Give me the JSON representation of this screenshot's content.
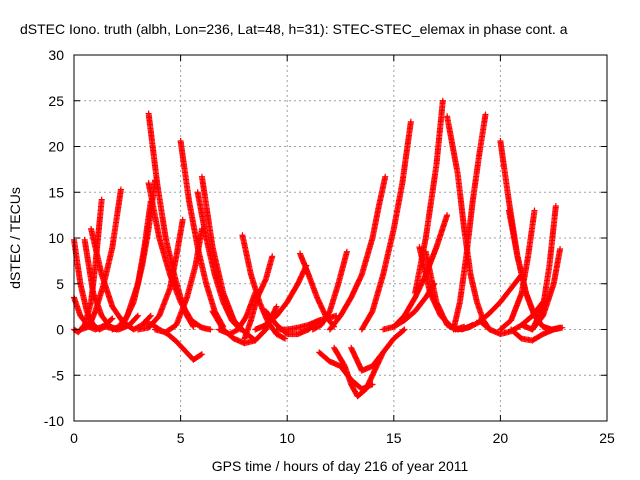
{
  "chart_data": {
    "type": "scatter",
    "title": "dSTEC Iono. truth (albh, Lon=236, Lat=48, h=31): STEC-STEC_elemax in phase cont. a",
    "xlabel": "GPS time / hours of day 216 of year 2011",
    "ylabel": "dSTEC  / TECUs",
    "xlim": [
      0,
      25
    ],
    "ylim": [
      -10,
      30
    ],
    "xticks": [
      0,
      5,
      10,
      15,
      20,
      25
    ],
    "yticks": [
      -10,
      -5,
      0,
      5,
      10,
      15,
      20,
      25,
      30
    ],
    "xtick_labels": [
      "0",
      "5",
      "10",
      "15",
      "20",
      "25"
    ],
    "ytick_labels": [
      "-10",
      "-5",
      "0",
      "5",
      "10",
      "15",
      "20",
      "25",
      "30"
    ],
    "grid": true,
    "marker": "+",
    "color": "#ff0000",
    "series": [
      {
        "x": [
          0.0,
          0.3,
          0.6,
          0.9,
          1.2,
          1.6
        ],
        "y": [
          9.8,
          5.0,
          2.0,
          0.5,
          0.0,
          0.5
        ]
      },
      {
        "x": [
          0.0,
          0.3,
          0.7,
          1.0,
          1.4,
          1.8
        ],
        "y": [
          3.5,
          1.5,
          0.3,
          0.0,
          0.4,
          1.2
        ]
      },
      {
        "x": [
          0.0,
          0.2,
          0.5,
          0.8,
          1.0,
          1.3
        ],
        "y": [
          0.0,
          -0.3,
          0.5,
          3.0,
          7.0,
          14.2
        ]
      },
      {
        "x": [
          0.3,
          0.7,
          1.0,
          1.4,
          1.8,
          2.2
        ],
        "y": [
          0.0,
          0.3,
          2.0,
          5.0,
          9.0,
          15.3
        ]
      },
      {
        "x": [
          0.5,
          0.9,
          1.3,
          1.7,
          2.1,
          2.6,
          3.0
        ],
        "y": [
          9.8,
          4.0,
          1.5,
          0.3,
          0.0,
          0.5,
          1.5
        ]
      },
      {
        "x": [
          0.8,
          1.3,
          1.8,
          2.3,
          2.8,
          3.2,
          3.6
        ],
        "y": [
          11.0,
          6.0,
          2.5,
          0.8,
          0.0,
          0.5,
          1.5
        ]
      },
      {
        "x": [
          1.5,
          2.0,
          2.5,
          3.0,
          3.3,
          3.6
        ],
        "y": [
          0.3,
          0.0,
          1.5,
          5.0,
          9.0,
          14.0
        ]
      },
      {
        "x": [
          1.8,
          2.3,
          2.8,
          3.2,
          3.5,
          3.8
        ],
        "y": [
          0.0,
          0.5,
          3.0,
          7.0,
          11.0,
          16.3
        ]
      },
      {
        "x": [
          3.5,
          3.9,
          4.3,
          4.7,
          5.0,
          5.3,
          5.6
        ],
        "y": [
          23.6,
          16.0,
          10.0,
          6.0,
          3.5,
          1.5,
          0.3
        ]
      },
      {
        "x": [
          3.5,
          4.0,
          4.5,
          5.0,
          5.5,
          6.0,
          6.4
        ],
        "y": [
          16.0,
          10.0,
          6.0,
          3.0,
          1.0,
          0.2,
          0.0
        ]
      },
      {
        "x": [
          3.0,
          3.5,
          4.0,
          4.5,
          4.8,
          5.1
        ],
        "y": [
          0.0,
          0.2,
          1.5,
          4.5,
          8.0,
          12.0
        ]
      },
      {
        "x": [
          3.8,
          4.3,
          4.8,
          5.3,
          5.7,
          6.0
        ],
        "y": [
          0.0,
          -0.3,
          0.5,
          3.5,
          7.0,
          11.0
        ]
      },
      {
        "x": [
          3.3,
          3.7,
          4.0,
          4.4,
          4.8,
          5.2,
          5.6,
          6.0
        ],
        "y": [
          0.8,
          0.5,
          0.0,
          -0.5,
          -1.3,
          -2.3,
          -3.3,
          -2.7
        ]
      },
      {
        "x": [
          5.0,
          5.4,
          5.8,
          6.2,
          6.6,
          7.0
        ],
        "y": [
          20.6,
          14.0,
          9.0,
          5.0,
          2.0,
          0.3
        ]
      },
      {
        "x": [
          5.8,
          6.2,
          6.6,
          7.0,
          7.4,
          7.8
        ],
        "y": [
          15.0,
          10.0,
          6.0,
          3.0,
          1.0,
          0.0
        ]
      },
      {
        "x": [
          6.0,
          6.5,
          7.0,
          7.5,
          8.0,
          8.5
        ],
        "y": [
          16.7,
          9.0,
          4.0,
          1.0,
          -0.3,
          -1.2
        ]
      },
      {
        "x": [
          6.5,
          7.0,
          7.5,
          8.0,
          8.5,
          9.0,
          9.5
        ],
        "y": [
          2.0,
          0.0,
          -1.0,
          -1.5,
          -1.2,
          0.0,
          2.5
        ]
      },
      {
        "x": [
          6.8,
          7.3,
          7.7,
          8.1,
          8.5
        ],
        "y": [
          0.0,
          -0.5,
          0.0,
          1.5,
          4.0
        ]
      },
      {
        "x": [
          7.9,
          8.3,
          8.7,
          9.1,
          9.5,
          9.9
        ],
        "y": [
          10.3,
          6.0,
          3.0,
          0.8,
          -0.5,
          -1.0
        ]
      },
      {
        "x": [
          8.0,
          8.3,
          8.6,
          9.0,
          9.3
        ],
        "y": [
          -1.0,
          1.0,
          3.5,
          5.5,
          8.0
        ]
      },
      {
        "x": [
          8.5,
          9.0,
          9.5,
          10.0,
          10.5,
          10.9
        ],
        "y": [
          0.0,
          0.5,
          1.5,
          3.0,
          5.0,
          7.0
        ]
      },
      {
        "x": [
          9.0,
          9.5,
          10.0,
          10.5,
          11.0,
          11.5
        ],
        "y": [
          2.0,
          0.5,
          -0.5,
          -0.5,
          0.0,
          1.0
        ]
      },
      {
        "x": [
          9.5,
          10.0,
          10.5,
          11.0,
          11.5,
          12.0,
          12.3
        ],
        "y": [
          0.0,
          0.0,
          0.2,
          0.5,
          1.0,
          1.3,
          1.5
        ]
      },
      {
        "x": [
          10.6,
          11.0,
          11.4,
          11.8,
          12.2
        ],
        "y": [
          8.3,
          6.0,
          3.5,
          1.5,
          0.3
        ]
      },
      {
        "x": [
          11.2,
          11.6,
          12.0,
          12.4,
          12.8
        ],
        "y": [
          0.0,
          0.5,
          2.0,
          5.0,
          8.5
        ]
      },
      {
        "x": [
          11.5,
          12.0,
          12.5,
          13.0,
          13.5,
          14.0
        ],
        "y": [
          -2.5,
          -3.5,
          -4.0,
          -5.5,
          -6.5,
          -6.0
        ]
      },
      {
        "x": [
          12.2,
          12.7,
          13.0,
          13.3,
          13.7,
          14.1,
          14.5
        ],
        "y": [
          -2.0,
          -4.0,
          -6.0,
          -7.3,
          -6.5,
          -4.5,
          -2.5
        ]
      },
      {
        "x": [
          13.0,
          13.5,
          14.0,
          14.5,
          15.0,
          15.5
        ],
        "y": [
          -2.0,
          -4.5,
          -4.0,
          -2.5,
          -1.0,
          0.0
        ]
      },
      {
        "x": [
          12.0,
          12.5,
          13.0,
          13.5,
          14.0,
          14.3,
          14.6
        ],
        "y": [
          0.0,
          1.5,
          3.5,
          6.0,
          10.0,
          13.5,
          16.7
        ]
      },
      {
        "x": [
          13.5,
          14.0,
          14.5,
          15.0,
          15.4,
          15.8
        ],
        "y": [
          0.0,
          2.0,
          6.0,
          11.0,
          16.0,
          22.7
        ]
      },
      {
        "x": [
          14.5,
          15.0,
          15.5,
          16.0,
          16.5,
          16.9
        ],
        "y": [
          0.0,
          0.3,
          1.0,
          2.0,
          3.5,
          5.0
        ]
      },
      {
        "x": [
          15.0,
          15.5,
          16.0,
          16.5,
          17.0,
          17.5
        ],
        "y": [
          0.3,
          1.5,
          3.5,
          6.0,
          9.0,
          12.5
        ]
      },
      {
        "x": [
          16.0,
          16.5,
          17.0,
          17.3
        ],
        "y": [
          4.0,
          10.0,
          18.0,
          25.0
        ]
      },
      {
        "x": [
          16.2,
          16.7,
          17.2,
          17.7,
          18.2,
          18.7
        ],
        "y": [
          9.0,
          4.0,
          1.5,
          0.3,
          0.0,
          0.5
        ]
      },
      {
        "x": [
          16.5,
          17.0,
          17.5,
          17.9,
          18.3
        ],
        "y": [
          8.5,
          3.0,
          0.5,
          0.0,
          0.3
        ]
      },
      {
        "x": [
          17.5,
          18.0,
          18.3,
          18.6,
          18.9,
          19.2,
          19.5
        ],
        "y": [
          23.3,
          17.0,
          11.0,
          6.0,
          3.0,
          1.0,
          0.0
        ]
      },
      {
        "x": [
          17.8,
          18.1,
          18.4,
          18.7,
          19.0,
          19.3
        ],
        "y": [
          0.0,
          3.0,
          8.0,
          14.0,
          19.0,
          23.5
        ]
      },
      {
        "x": [
          18.0,
          18.5,
          19.0,
          19.5,
          20.0,
          20.5,
          21.0
        ],
        "y": [
          0.0,
          0.2,
          0.8,
          1.8,
          3.0,
          4.5,
          6.0
        ]
      },
      {
        "x": [
          19.0,
          19.5,
          20.0,
          20.5,
          21.0,
          21.5,
          22.0
        ],
        "y": [
          1.0,
          0.0,
          -0.5,
          -0.2,
          0.5,
          1.5,
          3.0
        ]
      },
      {
        "x": [
          20.0,
          20.4,
          20.8,
          21.2,
          21.6,
          22.0,
          22.4
        ],
        "y": [
          20.6,
          14.0,
          8.0,
          4.0,
          1.5,
          0.3,
          0.0
        ]
      },
      {
        "x": [
          20.4,
          20.8,
          21.2,
          21.6,
          22.0,
          22.4,
          22.8
        ],
        "y": [
          13.0,
          8.0,
          4.0,
          1.5,
          0.3,
          0.0,
          0.2
        ]
      },
      {
        "x": [
          20.0,
          20.5,
          21.0,
          21.3,
          21.6
        ],
        "y": [
          0.0,
          1.0,
          4.0,
          8.0,
          13.0
        ]
      },
      {
        "x": [
          21.0,
          21.5,
          22.0,
          22.3,
          22.6
        ],
        "y": [
          0.5,
          0.0,
          2.5,
          7.0,
          13.5
        ]
      },
      {
        "x": [
          21.5,
          22.0,
          22.5,
          22.8
        ],
        "y": [
          0.0,
          1.5,
          5.0,
          8.8
        ]
      },
      {
        "x": [
          20.5,
          21.0,
          21.5,
          22.0,
          22.5,
          22.9
        ],
        "y": [
          0.0,
          -1.0,
          -1.2,
          -0.5,
          0.0,
          0.2
        ]
      }
    ]
  }
}
